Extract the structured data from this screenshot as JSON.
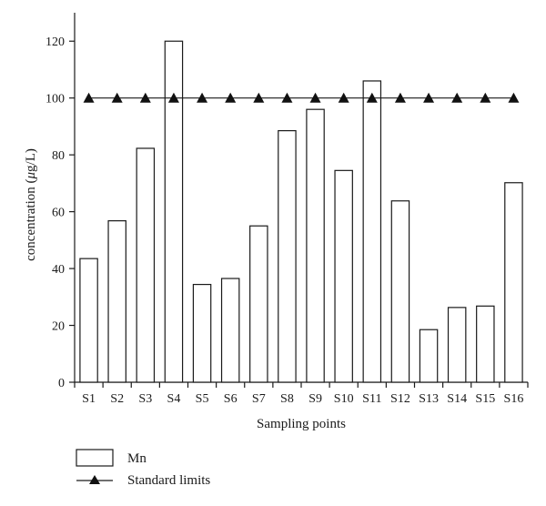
{
  "chart_data": {
    "type": "bar",
    "categories": [
      "S1",
      "S2",
      "S3",
      "S4",
      "S5",
      "S6",
      "S7",
      "S8",
      "S9",
      "S10",
      "S11",
      "S12",
      "S13",
      "S14",
      "S15",
      "S16"
    ],
    "series": [
      {
        "name": "Mn",
        "values": [
          43.5,
          56.8,
          82.3,
          120,
          34.4,
          36.5,
          55,
          88.5,
          96,
          74.5,
          106,
          63.8,
          18.5,
          26.3,
          26.8,
          70.2
        ],
        "kind": "bar"
      },
      {
        "name": "Standard limits",
        "values": [
          100,
          100,
          100,
          100,
          100,
          100,
          100,
          100,
          100,
          100,
          100,
          100,
          100,
          100,
          100,
          100
        ],
        "kind": "line",
        "marker": "triangle"
      }
    ],
    "title": "",
    "xlabel": "Sampling points",
    "ylabel_parts": {
      "pre": "concentration (",
      "italic": "μ",
      "post": "g/L)"
    },
    "ylim": [
      0,
      130
    ],
    "yticks": [
      0,
      20,
      40,
      60,
      80,
      100,
      120
    ],
    "grid": false,
    "legend_position": "bottom-left",
    "colors": {
      "bar_fill": "#ffffff",
      "stroke": "#1a1a1a",
      "marker": "#111111"
    }
  }
}
